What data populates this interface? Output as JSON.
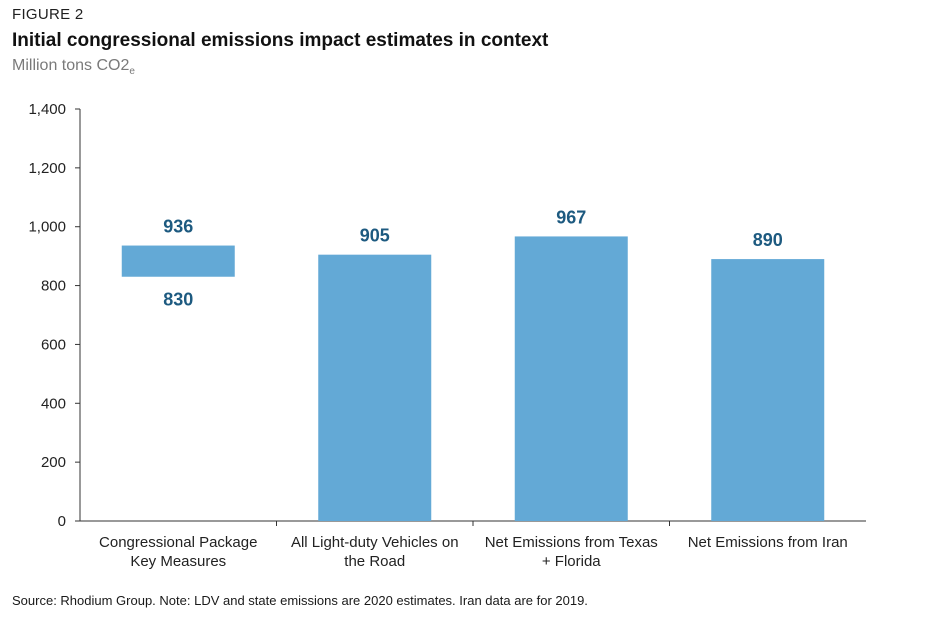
{
  "figure_label": "FIGURE 2",
  "title": "Initial congressional emissions impact estimates in context",
  "subtitle_main": "Million tons CO2",
  "subtitle_sub": "e",
  "source_note": "Source: Rhodium Group. Note: LDV and state emissions are 2020 estimates. Iran data are for 2019.",
  "colors": {
    "bar": "#63a9d6",
    "label": "#1d5a80",
    "axis": "#333333"
  },
  "chart_data": {
    "type": "bar",
    "title": "Initial congressional emissions impact estimates in context",
    "ylabel": "Million tons CO2e",
    "xlabel": "",
    "ylim": [
      0,
      1400
    ],
    "yticks": [
      0,
      200,
      400,
      600,
      800,
      1000,
      1200,
      1400
    ],
    "ytick_labels": [
      "0",
      "200",
      "400",
      "600",
      "800",
      "1,000",
      "1,200",
      "1,400"
    ],
    "grid": false,
    "categories": [
      [
        "Congressional Package",
        "Key Measures"
      ],
      [
        "All Light-duty Vehicles on",
        "the Road"
      ],
      [
        "Net Emissions from Texas",
        "+ Florida"
      ],
      [
        "Net Emissions from Iran"
      ]
    ],
    "bars": [
      {
        "low": 830,
        "high": 936,
        "label_high": "936",
        "label_low": "830"
      },
      {
        "low": 0,
        "high": 905,
        "label_high": "905"
      },
      {
        "low": 0,
        "high": 967,
        "label_high": "967"
      },
      {
        "low": 0,
        "high": 890,
        "label_high": "890"
      }
    ]
  }
}
